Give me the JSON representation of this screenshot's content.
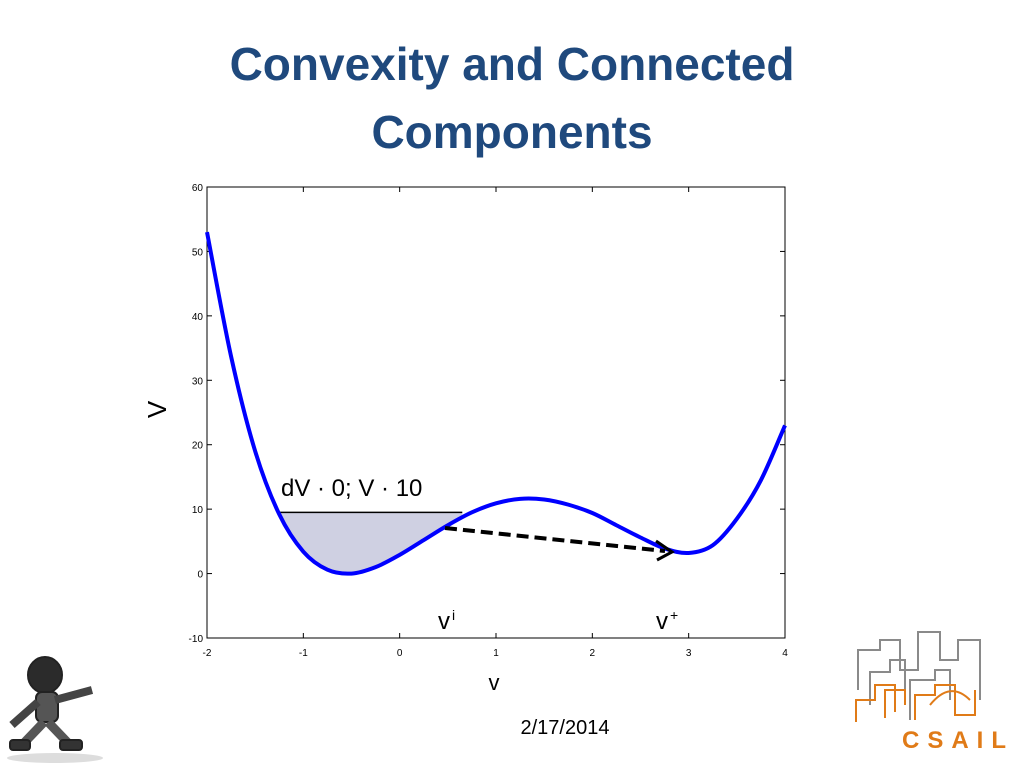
{
  "slide": {
    "title": "Convexity and Connected Components",
    "date": "2/17/2014",
    "logo_text": "CSAIL"
  },
  "chart_data": {
    "type": "line",
    "xlabel": "v",
    "ylabel": "V",
    "x": [
      -2,
      -1.75,
      -1.5,
      -1.25,
      -1,
      -0.75,
      -0.5,
      -0.25,
      0,
      0.25,
      0.5,
      0.75,
      1,
      1.25,
      1.5,
      1.75,
      2,
      2.25,
      2.5,
      2.75,
      3,
      3.25,
      3.5,
      3.75,
      4
    ],
    "series": [
      {
        "color": "#0000ff",
        "values": [
          53,
          33.7,
          19,
          9.2,
          3.4,
          0.6,
          0,
          1,
          2.9,
          5.2,
          7.5,
          9.5,
          10.9,
          11.6,
          11.5,
          10.7,
          9.4,
          7.5,
          5.6,
          3.9,
          3.2,
          4.4,
          8.5,
          14.5,
          23
        ]
      }
    ],
    "xlim": [
      -2,
      4
    ],
    "xticks": [
      -2,
      -1,
      0,
      1,
      2,
      3,
      4
    ],
    "ylim": [
      -10,
      60
    ],
    "yticks": [
      -10,
      0,
      10,
      20,
      30,
      40,
      50,
      60
    ],
    "level": 9.5,
    "level_range": [
      -1.27,
      0.65
    ],
    "shade_color": "#cfd0e2",
    "annotation": "dV · 0; V · 10",
    "points": [
      {
        "base": "v",
        "sup": "i"
      },
      {
        "base": "v",
        "sup": "+"
      }
    ]
  }
}
